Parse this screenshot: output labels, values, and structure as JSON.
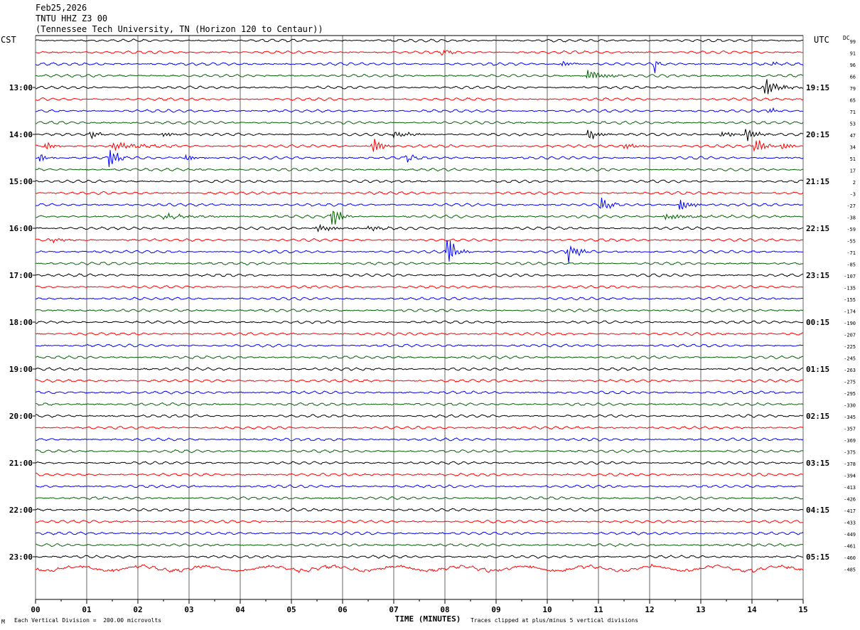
{
  "header": {
    "date": "Feb25,2026",
    "station": "TNTU HHZ Z3 00",
    "location": "(Tennessee Tech University, TN (Horizon 120 to Centaur))"
  },
  "left_corner": "CST",
  "right_corner": "UTC",
  "dc_label": "DC",
  "footer": {
    "scale": "Each Vertical Division =  200.00 microvolts",
    "clip": "Traces clipped at plus/minus 5 vertical divisions",
    "logo": "M"
  },
  "colors": {
    "trace_cycle": [
      "#000000",
      "#ff0000",
      "#0000ff",
      "#006400"
    ],
    "grid": "#000000"
  },
  "chart_data": {
    "type": "line",
    "title": "",
    "xlabel": "TIME (MINUTES)",
    "xlim": [
      0,
      15
    ],
    "x_ticks": [
      "00",
      "01",
      "02",
      "03",
      "04",
      "05",
      "06",
      "07",
      "08",
      "09",
      "10",
      "11",
      "12",
      "13",
      "14",
      "15"
    ],
    "rows_per_hour": 4,
    "row_minutes": 15,
    "left_hour_labels": [
      "13:00",
      "14:00",
      "15:00",
      "16:00",
      "17:00",
      "18:00",
      "19:00",
      "20:00",
      "21:00",
      "22:00",
      "23:00"
    ],
    "right_hour_labels": [
      "19:15",
      "20:15",
      "21:15",
      "22:15",
      "23:15",
      "00:15",
      "01:15",
      "02:15",
      "03:15",
      "04:15",
      "05:15"
    ],
    "hour_label_rows": [
      4,
      8,
      12,
      16,
      20,
      24,
      28,
      32,
      36,
      40,
      44
    ],
    "dc_offsets": [
      "99",
      "91",
      "96",
      "66",
      "79",
      "65",
      "71",
      "53",
      "47",
      "34",
      "51",
      "17",
      "2",
      "-3",
      "-27",
      "-38",
      "-59",
      "-55",
      "-71",
      "-85",
      "-107",
      "-135",
      "-155",
      "-174",
      "-190",
      "-207",
      "-225",
      "-245",
      "-263",
      "-275",
      "-295",
      "-330",
      "-345",
      "-357",
      "-369",
      "-375",
      "-378",
      "-394",
      "-413",
      "-426",
      "-417",
      "-433",
      "-449",
      "-461",
      "-460",
      "-485"
    ],
    "events": [
      {
        "row": 1,
        "minute": 7.9,
        "amp": 5,
        "width": 0.2
      },
      {
        "row": 2,
        "minute": 10.3,
        "amp": 5,
        "width": 0.15
      },
      {
        "row": 2,
        "minute": 12.1,
        "amp": 14,
        "width": 0.05
      },
      {
        "row": 2,
        "minute": 14.4,
        "amp": 4,
        "width": 0.15
      },
      {
        "row": 3,
        "minute": 10.8,
        "amp": 10,
        "width": 0.25
      },
      {
        "row": 4,
        "minute": 14.25,
        "amp": 14,
        "width": 0.25
      },
      {
        "row": 6,
        "minute": 14.35,
        "amp": 5,
        "width": 0.1
      },
      {
        "row": 8,
        "minute": 1.1,
        "amp": 6,
        "width": 0.15
      },
      {
        "row": 8,
        "minute": 2.5,
        "amp": 4,
        "width": 0.2
      },
      {
        "row": 8,
        "minute": 7.0,
        "amp": 6,
        "width": 0.3
      },
      {
        "row": 8,
        "minute": 10.8,
        "amp": 12,
        "width": 0.15
      },
      {
        "row": 8,
        "minute": 13.9,
        "amp": 14,
        "width": 0.15
      },
      {
        "row": 8,
        "minute": 13.4,
        "amp": 5,
        "width": 0.25
      },
      {
        "row": 9,
        "minute": 0.2,
        "amp": 6,
        "width": 0.15
      },
      {
        "row": 9,
        "minute": 1.5,
        "amp": 6,
        "width": 0.5
      },
      {
        "row": 9,
        "minute": 6.6,
        "amp": 14,
        "width": 0.15
      },
      {
        "row": 9,
        "minute": 11.5,
        "amp": 5,
        "width": 0.2
      },
      {
        "row": 9,
        "minute": 14.05,
        "amp": 14,
        "width": 0.15
      },
      {
        "row": 9,
        "minute": 14.6,
        "amp": 12,
        "width": 0.12
      },
      {
        "row": 10,
        "minute": 0.1,
        "amp": 8,
        "width": 0.1
      },
      {
        "row": 10,
        "minute": 1.45,
        "amp": 28,
        "width": 0.1
      },
      {
        "row": 10,
        "minute": 2.95,
        "amp": 6,
        "width": 0.15
      },
      {
        "row": 10,
        "minute": 7.25,
        "amp": 7,
        "width": 0.15
      },
      {
        "row": 14,
        "minute": 11.05,
        "amp": 14,
        "width": 0.15
      },
      {
        "row": 14,
        "minute": 12.6,
        "amp": 14,
        "width": 0.15
      },
      {
        "row": 15,
        "minute": 5.8,
        "amp": 16,
        "width": 0.15
      },
      {
        "row": 15,
        "minute": 2.5,
        "amp": 4,
        "width": 0.5
      },
      {
        "row": 15,
        "minute": 12.3,
        "amp": 5,
        "width": 0.5
      },
      {
        "row": 16,
        "minute": 5.5,
        "amp": 6,
        "width": 0.3
      },
      {
        "row": 16,
        "minute": 6.5,
        "amp": 5,
        "width": 0.2
      },
      {
        "row": 17,
        "minute": 0.3,
        "amp": 3,
        "width": 0.3
      },
      {
        "row": 18,
        "minute": 8.05,
        "amp": 28,
        "width": 0.15
      },
      {
        "row": 18,
        "minute": 10.4,
        "amp": 20,
        "width": 0.15
      }
    ]
  }
}
